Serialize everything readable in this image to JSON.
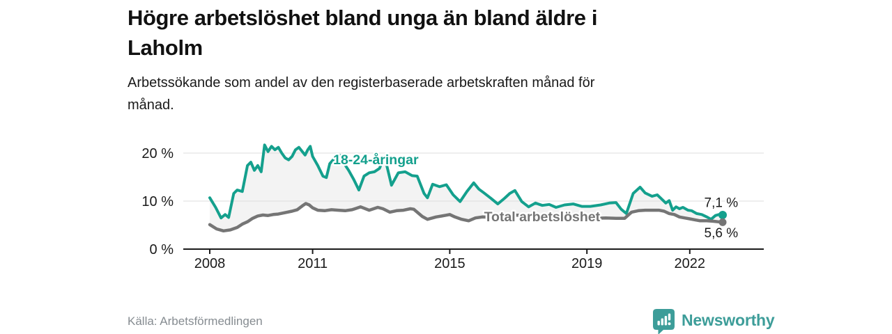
{
  "header": {
    "title_lines": [
      "Högre arbetslöshet bland unga än bland äldre i",
      "Laholm"
    ],
    "subtitle_lines": [
      "Arbetssökande som andel av den registerbaserade arbetskraften månad för",
      "månad."
    ]
  },
  "footer": {
    "source": "Källa: Arbetsförmedlingen",
    "brand": "Newsworthy",
    "brand_icon": "bar-chart-speech-bubble"
  },
  "colors": {
    "youth_line": "#14a08d",
    "total_line": "#757575",
    "band_fill": "#f3f3f3",
    "gridline": "#dcdcdc",
    "axis": "#1a1a1a",
    "annotation_text": "#1a1a1a",
    "brand_teal": "#3d9d99",
    "source_text": "#868c91"
  },
  "chart_data": {
    "type": "line",
    "title": "Högre arbetslöshet bland unga än bland äldre i Laholm",
    "x_axis": {
      "ticks": [
        2008,
        2011,
        2015,
        2019,
        2022
      ],
      "tick_labels": [
        "2008",
        "2011",
        "2015",
        "2019",
        "2022"
      ],
      "range_years": [
        2007.2,
        2024.2
      ]
    },
    "y_axis": {
      "ticks": [
        0,
        10,
        20
      ],
      "tick_labels": [
        "0 %",
        "10 %",
        "20 %"
      ],
      "ylim": [
        0,
        22
      ],
      "unit": "%"
    },
    "grid": "horizontal",
    "legend_position": "inline-labels",
    "series": [
      {
        "name": "18-24-åringar",
        "color": "#14a08d",
        "end_value_label": "7,1 %",
        "points": [
          [
            2008.0,
            10.7
          ],
          [
            2008.17,
            8.7
          ],
          [
            2008.33,
            6.5
          ],
          [
            2008.45,
            7.2
          ],
          [
            2008.55,
            6.6
          ],
          [
            2008.7,
            11.6
          ],
          [
            2008.8,
            12.3
          ],
          [
            2008.95,
            12.0
          ],
          [
            2009.1,
            17.4
          ],
          [
            2009.2,
            18.1
          ],
          [
            2009.3,
            16.4
          ],
          [
            2009.4,
            17.4
          ],
          [
            2009.5,
            16.1
          ],
          [
            2009.6,
            21.7
          ],
          [
            2009.7,
            20.3
          ],
          [
            2009.8,
            21.4
          ],
          [
            2009.9,
            20.7
          ],
          [
            2010.0,
            21.2
          ],
          [
            2010.1,
            20.0
          ],
          [
            2010.2,
            19.0
          ],
          [
            2010.3,
            18.6
          ],
          [
            2010.4,
            19.3
          ],
          [
            2010.5,
            20.7
          ],
          [
            2010.6,
            21.2
          ],
          [
            2010.7,
            20.3
          ],
          [
            2010.78,
            19.6
          ],
          [
            2010.86,
            20.7
          ],
          [
            2010.93,
            21.4
          ],
          [
            2011.0,
            19.3
          ],
          [
            2011.15,
            17.4
          ],
          [
            2011.3,
            15.2
          ],
          [
            2011.4,
            14.9
          ],
          [
            2011.5,
            17.8
          ],
          [
            2011.65,
            19.0
          ],
          [
            2011.8,
            19.5
          ],
          [
            2011.92,
            17.8
          ],
          [
            2012.05,
            16.4
          ],
          [
            2012.2,
            14.5
          ],
          [
            2012.35,
            12.3
          ],
          [
            2012.5,
            15.2
          ],
          [
            2012.65,
            15.9
          ],
          [
            2012.8,
            16.1
          ],
          [
            2012.95,
            16.8
          ],
          [
            2013.1,
            19.3
          ],
          [
            2013.3,
            13.3
          ],
          [
            2013.5,
            15.9
          ],
          [
            2013.7,
            16.1
          ],
          [
            2013.9,
            15.3
          ],
          [
            2014.05,
            15.2
          ],
          [
            2014.25,
            11.6
          ],
          [
            2014.35,
            10.7
          ],
          [
            2014.5,
            13.5
          ],
          [
            2014.7,
            13.0
          ],
          [
            2014.9,
            13.4
          ],
          [
            2015.1,
            11.3
          ],
          [
            2015.3,
            9.9
          ],
          [
            2015.5,
            12.0
          ],
          [
            2015.7,
            13.8
          ],
          [
            2015.85,
            12.5
          ],
          [
            2016.0,
            11.7
          ],
          [
            2016.2,
            10.6
          ],
          [
            2016.4,
            9.4
          ],
          [
            2016.6,
            10.6
          ],
          [
            2016.75,
            11.6
          ],
          [
            2016.9,
            12.2
          ],
          [
            2017.1,
            9.9
          ],
          [
            2017.3,
            8.8
          ],
          [
            2017.5,
            9.6
          ],
          [
            2017.7,
            9.1
          ],
          [
            2017.9,
            9.3
          ],
          [
            2018.1,
            8.7
          ],
          [
            2018.35,
            9.2
          ],
          [
            2018.6,
            9.4
          ],
          [
            2018.85,
            8.9
          ],
          [
            2019.1,
            8.9
          ],
          [
            2019.4,
            9.2
          ],
          [
            2019.65,
            9.6
          ],
          [
            2019.85,
            9.7
          ],
          [
            2020.0,
            8.3
          ],
          [
            2020.15,
            7.4
          ],
          [
            2020.35,
            11.6
          ],
          [
            2020.55,
            12.9
          ],
          [
            2020.7,
            11.7
          ],
          [
            2020.9,
            11.0
          ],
          [
            2021.05,
            11.3
          ],
          [
            2021.2,
            10.3
          ],
          [
            2021.3,
            9.6
          ],
          [
            2021.4,
            10.1
          ],
          [
            2021.5,
            8.1
          ],
          [
            2021.6,
            8.8
          ],
          [
            2021.7,
            8.4
          ],
          [
            2021.8,
            8.7
          ],
          [
            2021.95,
            8.1
          ],
          [
            2022.05,
            8.0
          ],
          [
            2022.2,
            7.4
          ],
          [
            2022.35,
            7.2
          ],
          [
            2022.5,
            6.7
          ],
          [
            2022.62,
            6.2
          ],
          [
            2022.75,
            7.0
          ],
          [
            2022.85,
            7.2
          ],
          [
            2022.96,
            7.1
          ]
        ]
      },
      {
        "name": "Total arbetslöshet",
        "color": "#757575",
        "end_value_label": "5,6 %",
        "points": [
          [
            2008.0,
            5.1
          ],
          [
            2008.2,
            4.2
          ],
          [
            2008.4,
            3.8
          ],
          [
            2008.6,
            4.0
          ],
          [
            2008.8,
            4.5
          ],
          [
            2008.95,
            5.2
          ],
          [
            2009.1,
            5.7
          ],
          [
            2009.25,
            6.4
          ],
          [
            2009.4,
            6.9
          ],
          [
            2009.55,
            7.1
          ],
          [
            2009.7,
            7.0
          ],
          [
            2009.85,
            7.2
          ],
          [
            2010.0,
            7.3
          ],
          [
            2010.2,
            7.6
          ],
          [
            2010.4,
            7.9
          ],
          [
            2010.55,
            8.2
          ],
          [
            2010.7,
            9.0
          ],
          [
            2010.8,
            9.5
          ],
          [
            2010.9,
            9.2
          ],
          [
            2011.0,
            8.6
          ],
          [
            2011.15,
            8.1
          ],
          [
            2011.35,
            8.0
          ],
          [
            2011.55,
            8.2
          ],
          [
            2011.75,
            8.1
          ],
          [
            2011.95,
            8.0
          ],
          [
            2012.15,
            8.2
          ],
          [
            2012.4,
            8.8
          ],
          [
            2012.65,
            8.1
          ],
          [
            2012.9,
            8.7
          ],
          [
            2013.05,
            8.4
          ],
          [
            2013.25,
            7.7
          ],
          [
            2013.45,
            8.0
          ],
          [
            2013.65,
            8.1
          ],
          [
            2013.85,
            8.4
          ],
          [
            2013.95,
            8.3
          ],
          [
            2014.2,
            6.8
          ],
          [
            2014.35,
            6.2
          ],
          [
            2014.6,
            6.7
          ],
          [
            2014.85,
            7.0
          ],
          [
            2015.0,
            7.2
          ],
          [
            2015.15,
            6.7
          ],
          [
            2015.35,
            6.2
          ],
          [
            2015.55,
            5.9
          ],
          [
            2015.75,
            6.5
          ],
          [
            2015.95,
            6.7
          ],
          [
            2016.25,
            6.6
          ],
          [
            2016.55,
            6.9
          ],
          [
            2016.85,
            7.1
          ],
          [
            2017.15,
            7.0
          ],
          [
            2017.45,
            6.9
          ],
          [
            2017.75,
            6.8
          ],
          [
            2018.05,
            6.6
          ],
          [
            2018.35,
            6.5
          ],
          [
            2018.65,
            6.4
          ],
          [
            2018.95,
            6.5
          ],
          [
            2019.25,
            6.4
          ],
          [
            2019.55,
            6.5
          ],
          [
            2019.85,
            6.4
          ],
          [
            2020.1,
            6.4
          ],
          [
            2020.3,
            7.7
          ],
          [
            2020.5,
            8.0
          ],
          [
            2020.7,
            8.1
          ],
          [
            2020.95,
            8.1
          ],
          [
            2021.1,
            8.1
          ],
          [
            2021.25,
            7.9
          ],
          [
            2021.4,
            7.4
          ],
          [
            2021.55,
            7.2
          ],
          [
            2021.7,
            6.7
          ],
          [
            2021.85,
            6.5
          ],
          [
            2022.0,
            6.3
          ],
          [
            2022.15,
            6.1
          ],
          [
            2022.3,
            5.9
          ],
          [
            2022.5,
            5.9
          ],
          [
            2022.7,
            5.8
          ],
          [
            2022.82,
            5.7
          ],
          [
            2022.96,
            5.6
          ]
        ]
      }
    ],
    "annotations": [
      {
        "text": "18-24-åringar",
        "x": 2011.6,
        "y": 17.7,
        "color": "#14a08d",
        "bold": true
      },
      {
        "text": "Total arbetslöshet",
        "x": 2016.0,
        "y": 5.8,
        "color": "#757575",
        "bold": true
      },
      {
        "text": "7,1 %",
        "x": 2022.42,
        "y": 8.8,
        "color": "#1a1a1a",
        "bold": false
      },
      {
        "text": "5,6 %",
        "x": 2022.42,
        "y": 2.5,
        "color": "#1a1a1a",
        "bold": false
      }
    ]
  }
}
